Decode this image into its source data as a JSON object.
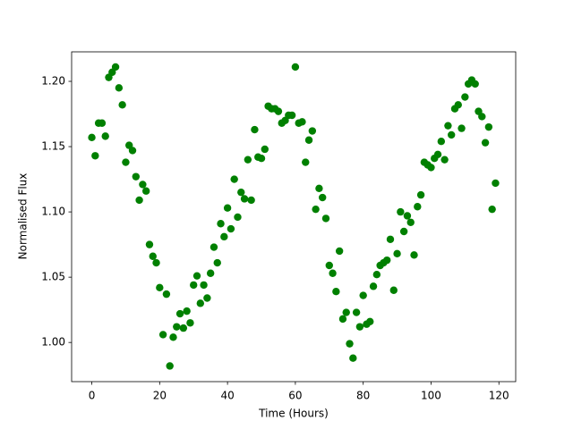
{
  "chart_data": {
    "type": "scatter",
    "xlabel": "Time (Hours)",
    "ylabel": "Normalised Flux",
    "color": "#008000",
    "x": [
      0,
      1,
      2,
      3,
      4,
      5,
      6,
      7,
      8,
      9,
      10,
      11,
      12,
      13,
      14,
      15,
      16,
      17,
      18,
      19,
      20,
      21,
      22,
      23,
      24,
      25,
      26,
      27,
      28,
      29,
      30,
      31,
      32,
      33,
      34,
      35,
      36,
      37,
      38,
      39,
      40,
      41,
      42,
      43,
      44,
      45,
      46,
      47,
      48,
      49,
      50,
      51,
      52,
      53,
      54,
      55,
      56,
      57,
      58,
      59,
      60,
      61,
      62,
      63,
      64,
      65,
      66,
      67,
      68,
      69,
      70,
      71,
      72,
      73,
      74,
      75,
      76,
      77,
      78,
      79,
      80,
      81,
      82,
      83,
      84,
      85,
      86,
      87,
      88,
      89,
      90,
      91,
      92,
      93,
      94,
      95,
      96,
      97,
      98,
      99,
      100,
      101,
      102,
      103,
      104,
      105,
      106,
      107,
      108,
      109,
      110,
      111,
      112,
      113,
      114,
      115,
      116,
      117,
      118,
      119
    ],
    "values": [
      1.157,
      1.143,
      1.168,
      1.168,
      1.158,
      1.203,
      1.207,
      1.211,
      1.195,
      1.182,
      1.138,
      1.151,
      1.147,
      1.127,
      1.109,
      1.121,
      1.116,
      1.075,
      1.066,
      1.061,
      1.042,
      1.006,
      1.037,
      0.982,
      1.004,
      1.012,
      1.022,
      1.011,
      1.024,
      1.015,
      1.044,
      1.051,
      1.03,
      1.044,
      1.034,
      1.053,
      1.073,
      1.061,
      1.091,
      1.081,
      1.103,
      1.087,
      1.125,
      1.096,
      1.115,
      1.11,
      1.14,
      1.109,
      1.163,
      1.142,
      1.141,
      1.148,
      1.181,
      1.179,
      1.179,
      1.177,
      1.168,
      1.17,
      1.174,
      1.174,
      1.211,
      1.168,
      1.169,
      1.138,
      1.155,
      1.162,
      1.102,
      1.118,
      1.111,
      1.095,
      1.059,
      1.053,
      1.039,
      1.07,
      1.018,
      1.023,
      0.999,
      0.988,
      1.023,
      1.012,
      1.036,
      1.014,
      1.016,
      1.043,
      1.052,
      1.059,
      1.061,
      1.063,
      1.079,
      1.04,
      1.068,
      1.1,
      1.085,
      1.097,
      1.092,
      1.067,
      1.104,
      1.113,
      1.138,
      1.136,
      1.134,
      1.141,
      1.144,
      1.154,
      1.14,
      1.166,
      1.159,
      1.179,
      1.182,
      1.164,
      1.188,
      1.198,
      1.201,
      1.198,
      1.177,
      1.173,
      1.153,
      1.165,
      1.102,
      1.122
    ],
    "xlim": [
      -5.95,
      124.95
    ],
    "ylim": [
      0.97,
      1.2226
    ],
    "xticks": [
      0,
      20,
      40,
      60,
      80,
      100,
      120
    ],
    "yticks": [
      {
        "value": 1.0,
        "label": "1.00"
      },
      1.05,
      {
        "value": 1.1,
        "label": "1.10"
      },
      1.15,
      {
        "value": 1.2,
        "label": "1.20"
      }
    ]
  }
}
